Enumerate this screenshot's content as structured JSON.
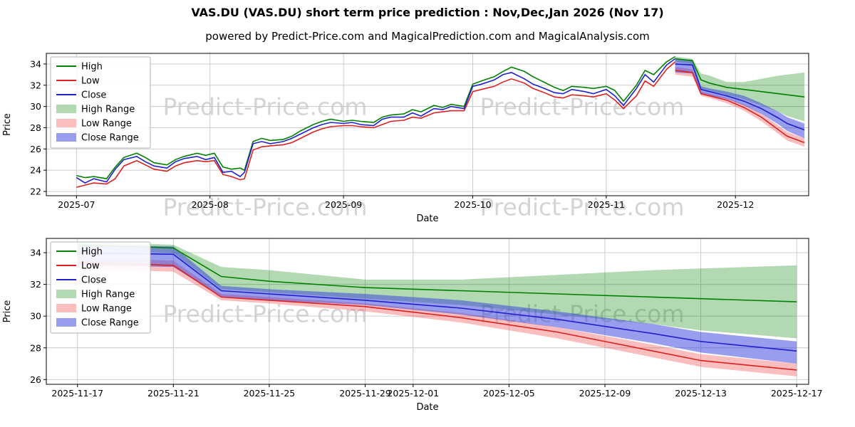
{
  "title": "VAS.DU (VAS.DU) short term price prediction : Nov,Dec,Jan 2026 (Nov 17)",
  "subtitle": "powered by Predict-Price.com and MagicalPrediction.com and MagicalAnalysis.com",
  "watermark_text": "Predict-Price.com",
  "colors": {
    "high": "#008000",
    "low": "#dd2020",
    "close": "#2020cc",
    "high_range": "rgba(0,128,0,0.30)",
    "low_range": "rgba(240,70,70,0.35)",
    "close_range": "rgba(50,60,220,0.50)",
    "grid": "#c6c6c6",
    "frame": "#000000"
  },
  "legend": [
    {
      "label": "High",
      "type": "line",
      "color_key": "high"
    },
    {
      "label": "Low",
      "type": "line",
      "color_key": "low"
    },
    {
      "label": "Close",
      "type": "line",
      "color_key": "close"
    },
    {
      "label": "High Range",
      "type": "band",
      "color_key": "high_range"
    },
    {
      "label": "Low Range",
      "type": "band",
      "color_key": "low_range"
    },
    {
      "label": "Close Range",
      "type": "band",
      "color_key": "close_range"
    }
  ],
  "chart_data": [
    {
      "type": "line",
      "title": "VAS.DU historical prices with forecast fan",
      "xlabel": "Date",
      "ylabel": "Price",
      "xlim": [
        -7,
        170
      ],
      "ylim": [
        21.6,
        35.0
      ],
      "yticks": [
        22,
        24,
        26,
        28,
        30,
        32,
        34
      ],
      "xticks": [
        {
          "label": "2025-07",
          "day": 0
        },
        {
          "label": "2025-08",
          "day": 31
        },
        {
          "label": "2025-09",
          "day": 62
        },
        {
          "label": "2025-10",
          "day": 92
        },
        {
          "label": "2025-11",
          "day": 123
        },
        {
          "label": "2025-12",
          "day": 153
        }
      ],
      "history": {
        "days": [
          0,
          2,
          4,
          7,
          9,
          11,
          14,
          16,
          18,
          21,
          23,
          25,
          28,
          30,
          32,
          34,
          36,
          38,
          39,
          41,
          43,
          45,
          48,
          50,
          52,
          55,
          57,
          59,
          62,
          64,
          66,
          69,
          71,
          73,
          76,
          78,
          80,
          83,
          85,
          87,
          90,
          92,
          94,
          97,
          99,
          101,
          104,
          106,
          108,
          111,
          113,
          115,
          118,
          120,
          123,
          125,
          127,
          130,
          132,
          134,
          137,
          139
        ],
        "high": [
          23.5,
          23.3,
          23.4,
          23.2,
          24.3,
          25.2,
          25.6,
          25.2,
          24.7,
          24.5,
          25.0,
          25.3,
          25.6,
          25.4,
          25.6,
          24.3,
          24.1,
          24.2,
          24.0,
          26.7,
          27.0,
          26.8,
          26.9,
          27.2,
          27.7,
          28.3,
          28.6,
          28.8,
          28.6,
          28.7,
          28.6,
          28.5,
          29.0,
          29.2,
          29.3,
          29.7,
          29.5,
          30.1,
          29.9,
          30.2,
          30.0,
          32.1,
          32.4,
          32.8,
          33.3,
          33.7,
          33.3,
          32.8,
          32.4,
          31.8,
          31.5,
          31.9,
          31.8,
          31.7,
          31.9,
          31.5,
          30.5,
          32.0,
          33.4,
          33.0,
          34.2,
          34.7
        ],
        "low": [
          22.4,
          22.6,
          22.8,
          22.7,
          23.2,
          24.4,
          24.9,
          24.5,
          24.1,
          23.9,
          24.4,
          24.7,
          24.9,
          24.8,
          24.9,
          23.6,
          23.4,
          23.1,
          23.2,
          25.9,
          26.2,
          26.3,
          26.4,
          26.6,
          27.0,
          27.6,
          27.9,
          28.1,
          28.2,
          28.2,
          28.1,
          28.0,
          28.3,
          28.6,
          28.7,
          29.0,
          28.9,
          29.4,
          29.5,
          29.6,
          29.6,
          31.4,
          31.6,
          31.9,
          32.3,
          32.6,
          32.2,
          31.7,
          31.4,
          30.9,
          30.8,
          31.1,
          31.0,
          30.9,
          31.2,
          30.6,
          29.8,
          31.0,
          32.4,
          31.9,
          33.5,
          34.2
        ],
        "close": [
          23.3,
          22.8,
          23.2,
          22.9,
          24.1,
          25.0,
          25.3,
          24.8,
          24.4,
          24.2,
          24.8,
          25.1,
          25.3,
          25.0,
          25.2,
          23.8,
          23.9,
          23.4,
          23.8,
          26.5,
          26.7,
          26.5,
          26.7,
          27.0,
          27.4,
          28.0,
          28.3,
          28.5,
          28.4,
          28.5,
          28.3,
          28.2,
          28.8,
          29.0,
          29.0,
          29.4,
          29.1,
          29.8,
          29.7,
          30.0,
          29.8,
          31.9,
          32.1,
          32.5,
          33.0,
          33.2,
          32.6,
          32.1,
          31.8,
          31.3,
          31.2,
          31.6,
          31.4,
          31.2,
          31.6,
          31.0,
          30.1,
          31.7,
          33.0,
          32.3,
          33.9,
          34.5
        ]
      },
      "prediction": {
        "dates": [
          "2025-11-17",
          "2025-11-21",
          "2025-11-23",
          "2025-11-25",
          "2025-11-29",
          "2025-12-03",
          "2025-12-07",
          "2025-12-11",
          "2025-12-13",
          "2025-12-17"
        ],
        "days": [
          139,
          143,
          145,
          147,
          151,
          155,
          159,
          163,
          165,
          169
        ],
        "high": [
          34.5,
          34.3,
          32.5,
          32.2,
          31.8,
          31.6,
          31.4,
          31.2,
          31.1,
          30.9
        ],
        "high_upper": [
          34.7,
          34.5,
          33.1,
          32.9,
          32.3,
          32.3,
          32.6,
          32.9,
          33.0,
          33.2
        ],
        "high_lower": [
          34.2,
          34.0,
          31.7,
          31.5,
          31.1,
          30.7,
          30.1,
          29.5,
          29.1,
          28.6
        ],
        "close": [
          34.0,
          33.9,
          31.6,
          31.4,
          31.0,
          30.5,
          29.8,
          28.9,
          28.4,
          27.8
        ],
        "close_upper": [
          34.5,
          34.4,
          31.9,
          31.7,
          31.4,
          31.0,
          30.3,
          29.5,
          29.0,
          28.4
        ],
        "close_lower": [
          33.2,
          33.1,
          31.2,
          31.0,
          30.7,
          30.1,
          29.3,
          28.3,
          27.7,
          27.0
        ],
        "low": [
          33.4,
          33.2,
          31.2,
          31.0,
          30.6,
          29.9,
          29.0,
          27.8,
          27.2,
          26.6
        ],
        "low_upper": [
          33.7,
          33.5,
          31.4,
          31.2,
          30.8,
          30.2,
          29.3,
          28.2,
          27.6,
          27.0
        ],
        "low_lower": [
          33.0,
          32.8,
          31.0,
          30.8,
          30.3,
          29.6,
          28.6,
          27.4,
          26.8,
          26.2
        ]
      }
    },
    {
      "type": "line",
      "title": "VAS.DU forecast detail Nov 17 - Dec 17",
      "xlabel": "Date",
      "ylabel": "Price",
      "xlim": [
        137.7,
        169.5
      ],
      "ylim": [
        25.7,
        34.9
      ],
      "yticks": [
        26,
        28,
        30,
        32,
        34
      ],
      "xticks": [
        {
          "label": "2025-11-17",
          "day": 139
        },
        {
          "label": "2025-11-21",
          "day": 143
        },
        {
          "label": "2025-11-25",
          "day": 147
        },
        {
          "label": "2025-11-29",
          "day": 151
        },
        {
          "label": "2025-12-01",
          "day": 153
        },
        {
          "label": "2025-12-05",
          "day": 157
        },
        {
          "label": "2025-12-09",
          "day": 161
        },
        {
          "label": "2025-12-13",
          "day": 165
        },
        {
          "label": "2025-12-17",
          "day": 169
        }
      ],
      "history": null,
      "prediction": {
        "dates": [
          "2025-11-17",
          "2025-11-21",
          "2025-11-23",
          "2025-11-25",
          "2025-11-29",
          "2025-12-03",
          "2025-12-07",
          "2025-12-11",
          "2025-12-13",
          "2025-12-17"
        ],
        "days": [
          139,
          143,
          145,
          147,
          151,
          155,
          159,
          163,
          165,
          169
        ],
        "high": [
          34.5,
          34.3,
          32.5,
          32.2,
          31.8,
          31.6,
          31.4,
          31.2,
          31.1,
          30.9
        ],
        "high_upper": [
          34.7,
          34.5,
          33.1,
          32.9,
          32.3,
          32.3,
          32.6,
          32.9,
          33.0,
          33.2
        ],
        "high_lower": [
          34.2,
          34.0,
          31.7,
          31.5,
          31.1,
          30.7,
          30.1,
          29.5,
          29.1,
          28.6
        ],
        "close": [
          34.0,
          33.9,
          31.6,
          31.4,
          31.0,
          30.5,
          29.8,
          28.9,
          28.4,
          27.8
        ],
        "close_upper": [
          34.5,
          34.4,
          31.9,
          31.7,
          31.4,
          31.0,
          30.3,
          29.5,
          29.0,
          28.4
        ],
        "close_lower": [
          33.2,
          33.1,
          31.2,
          31.0,
          30.7,
          30.1,
          29.3,
          28.3,
          27.7,
          27.0
        ],
        "low": [
          33.4,
          33.2,
          31.2,
          31.0,
          30.6,
          29.9,
          29.0,
          27.8,
          27.2,
          26.6
        ],
        "low_upper": [
          33.7,
          33.5,
          31.4,
          31.2,
          30.8,
          30.2,
          29.3,
          28.2,
          27.6,
          27.0
        ],
        "low_lower": [
          33.0,
          32.8,
          31.0,
          30.8,
          30.3,
          29.6,
          28.6,
          27.4,
          26.8,
          26.2
        ]
      }
    }
  ]
}
